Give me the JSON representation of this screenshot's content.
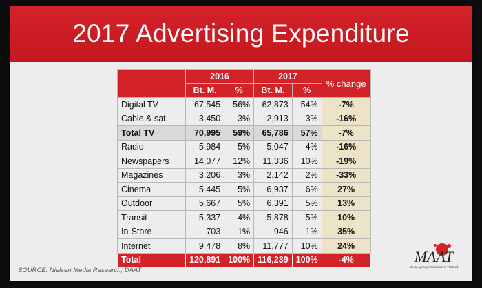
{
  "slide": {
    "title": "2017 Advertising Expenditure",
    "source": "SOURCE: Nielsen Media Research, DAAT"
  },
  "logo": {
    "text": "MAAT",
    "subtitle": "Media Agency Association of Thailand"
  },
  "table": {
    "year_headers": [
      "2016",
      "2017"
    ],
    "sub_headers": [
      "Bt. M.",
      "%",
      "Bt. M.",
      "%"
    ],
    "change_header": "% change",
    "rows": [
      {
        "category": "Digital TV",
        "b2016": "67,545",
        "p2016": "56%",
        "b2017": "62,873",
        "p2017": "54%",
        "change": "-7%"
      },
      {
        "category": "Cable & sat.",
        "b2016": "3,450",
        "p2016": "3%",
        "b2017": "2,913",
        "p2017": "3%",
        "change": "-16%"
      },
      {
        "category": "Total TV",
        "b2016": "70,995",
        "p2016": "59%",
        "b2017": "65,786",
        "p2017": "57%",
        "change": "-7%"
      },
      {
        "category": "Radio",
        "b2016": "5,984",
        "p2016": "5%",
        "b2017": "5,047",
        "p2017": "4%",
        "change": "-16%"
      },
      {
        "category": "Newspapers",
        "b2016": "14,077",
        "p2016": "12%",
        "b2017": "11,336",
        "p2017": "10%",
        "change": "-19%"
      },
      {
        "category": "Magazines",
        "b2016": "3,206",
        "p2016": "3%",
        "b2017": "2,142",
        "p2017": "2%",
        "change": "-33%"
      },
      {
        "category": "Cinema",
        "b2016": "5,445",
        "p2016": "5%",
        "b2017": "6,937",
        "p2017": "6%",
        "change": "27%"
      },
      {
        "category": "Outdoor",
        "b2016": "5,667",
        "p2016": "5%",
        "b2017": "6,391",
        "p2017": "5%",
        "change": "13%"
      },
      {
        "category": "Transit",
        "b2016": "5,337",
        "p2016": "4%",
        "b2017": "5,878",
        "p2017": "5%",
        "change": "10%"
      },
      {
        "category": "In-Store",
        "b2016": "703",
        "p2016": "1%",
        "b2017": "946",
        "p2017": "1%",
        "change": "35%"
      },
      {
        "category": "Internet",
        "b2016": "9,478",
        "p2016": "8%",
        "b2017": "11,777",
        "p2017": "10%",
        "change": "24%"
      },
      {
        "category": "Total",
        "b2016": "120,891",
        "p2016": "100%",
        "b2017": "116,239",
        "p2017": "100%",
        "change": "-4%"
      }
    ]
  },
  "colors": {
    "accent_red": "#d42229",
    "change_column": "#ece3c8",
    "slide_background": "#ededed"
  }
}
